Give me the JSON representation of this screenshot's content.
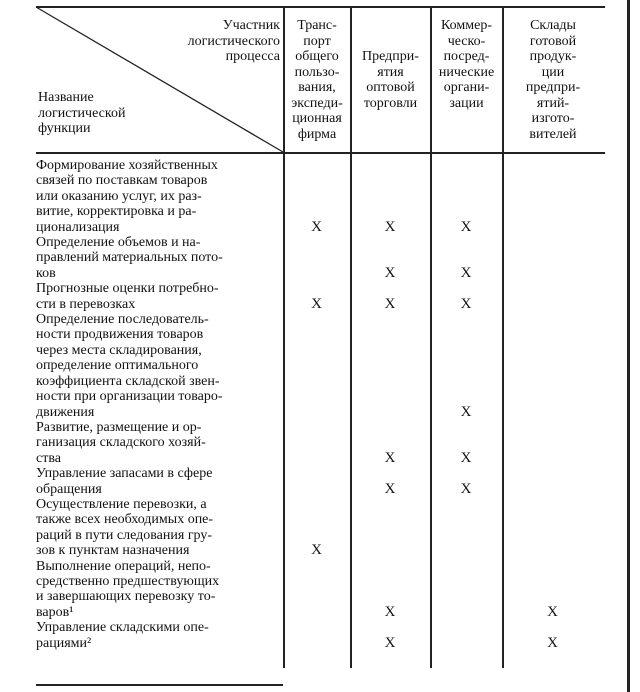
{
  "header": {
    "participant_label": "Участник\nлогистического\nпроцесса",
    "function_label": "Название\nлогистической\nфункции",
    "columns": [
      "Транс-\nпорт\nобщего\nпользо-\nвания,\nэкспеди-\nционная\nфирма",
      "Предпри-\nятия\nоптовой\nторговли",
      "Коммер-\nческо-\nпосред-\nнические\nоргани-\nзации",
      "Склады\nготовой\nпродук-\nции\nпредпри-\nятий-\nизгото-\nвителей"
    ]
  },
  "rows": [
    {
      "function": "   Формирование хозяйственных\nсвязей по поставкам товаров\nили оказанию услуг, их раз-\nвитие, корректировка и ра-\nционализация",
      "marks": [
        "X",
        "X",
        "X",
        ""
      ]
    },
    {
      "function": "   Определение объемов и на-\nправлений материальных пото-\nков",
      "marks": [
        "",
        "X",
        "X",
        ""
      ]
    },
    {
      "function": "   Прогнозные оценки потребно-\nсти в перевозках",
      "marks": [
        "X",
        "X",
        "X",
        ""
      ]
    },
    {
      "function": "   Определение последователь-\nности продвижения товаров\nчерез места складирования,\nопределение оптимального\nкоэффициента складской звен-\nности при организации товаро-\nдвижения",
      "marks": [
        "",
        "",
        "X",
        ""
      ]
    },
    {
      "function": "   Развитие, размещение и ор-\nганизация складского хозяй-\nства",
      "marks": [
        "",
        "X",
        "X",
        ""
      ]
    },
    {
      "function": "   Управление запасами в сфере\nобращения",
      "marks": [
        "",
        "X",
        "X",
        ""
      ]
    },
    {
      "function": "   Осуществление перевозки, а\nтакже всех необходимых опе-\nраций в пути следования гру-\nзов к пунктам назначения",
      "marks": [
        "X",
        "",
        "",
        ""
      ]
    },
    {
      "function": "   Выполнение операций, непо-\nсредственно предшествующих\nи завершающих перевозку то-\nваров¹",
      "marks": [
        "",
        "X",
        "",
        "X"
      ]
    },
    {
      "function": "   Управление складскими опе-\nрациями²",
      "marks": [
        "",
        "X",
        "",
        "X"
      ]
    }
  ]
}
